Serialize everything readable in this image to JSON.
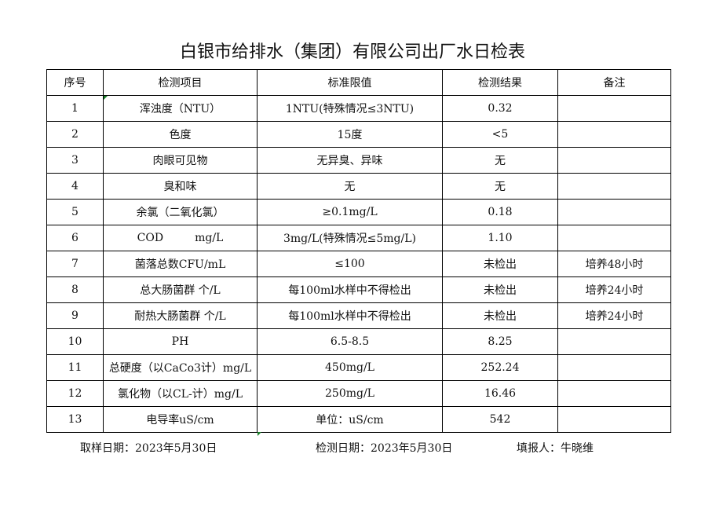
{
  "title": "白银市给排水（集团）有限公司出厂水日检表",
  "headers": [
    "序号",
    "检测项目",
    "标准限值",
    "检测结果",
    "备注"
  ],
  "rows": [
    [
      "1",
      "浑浊度（NTU）",
      "1NTU(特殊情况≤3NTU)",
      "0.32",
      ""
    ],
    [
      "2",
      "色度",
      "15度",
      "<5",
      ""
    ],
    [
      "3",
      "肉眼可见物",
      "无异臭、异味",
      "无",
      ""
    ],
    [
      "4",
      "臭和味",
      "无",
      "无",
      ""
    ],
    [
      "5",
      "余氯（二氧化氯）",
      "≥0.1mg/L",
      "0.18",
      ""
    ],
    [
      "6",
      "COD         mg/L",
      "3mg/L(特殊情况≤5mg/L)",
      "1.10",
      ""
    ],
    [
      "7",
      "菌落总数CFU/mL",
      "≤100",
      "未检出",
      "培养48小时"
    ],
    [
      "8",
      "总大肠菌群 个/L",
      "每100ml水样中不得检出",
      "未检出",
      "培养24小时"
    ],
    [
      "9",
      "耐热大肠菌群 个/L",
      "每100ml水样中不得检出",
      "未检出",
      "培养24小时"
    ],
    [
      "10",
      "PH",
      "6.5-8.5",
      "8.25",
      ""
    ],
    [
      "11",
      "总硬度（以CaCo3计）mg/L",
      "450mg/L",
      "252.24",
      ""
    ],
    [
      "12",
      "氯化物（以CL-计）mg/L",
      "250mg/L",
      "16.46",
      ""
    ],
    [
      "13",
      "电导率uS/cm",
      "单位：uS/cm",
      "542",
      ""
    ]
  ],
  "footer": {
    "sample_date": "取样日期：2023年5月30日",
    "test_date": "检测日期：2023年5月30日",
    "filled_by": "填报人：牛晓维"
  }
}
